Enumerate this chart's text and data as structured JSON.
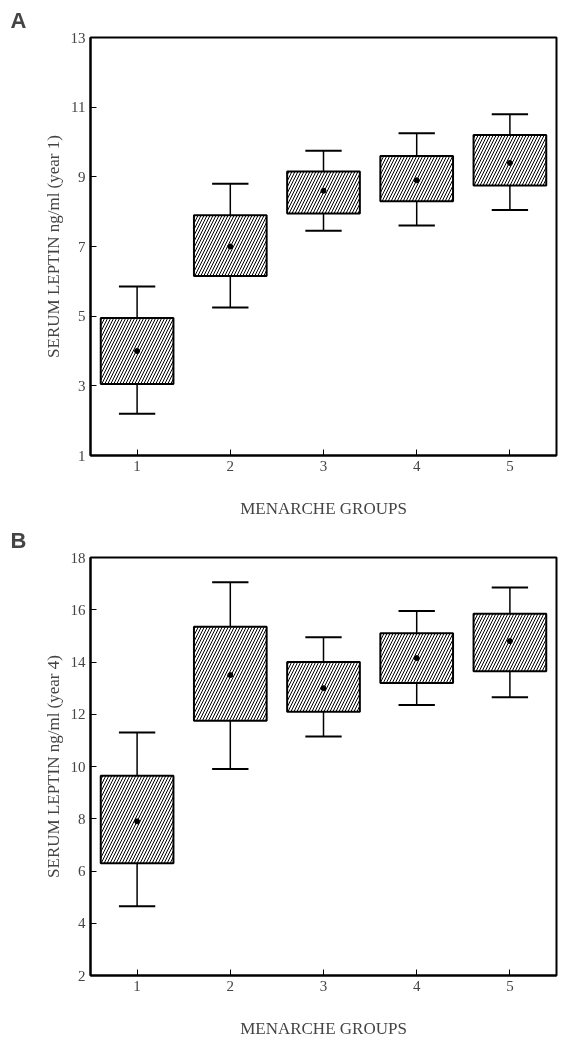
{
  "chart_data": [
    {
      "type": "box",
      "title": "A",
      "xlabel": "MENARCHE GROUPS",
      "ylabel": "SERUM LEPTIN ng/ml (year 1)",
      "categories": [
        "1",
        "2",
        "3",
        "4",
        "5"
      ],
      "ylim": [
        1,
        13
      ],
      "yticks": [
        1,
        3,
        5,
        7,
        9,
        11,
        13
      ],
      "grid": false,
      "color": "#ffffff",
      "boxes": [
        {
          "low": 2.2,
          "q1": 3.05,
          "median": 4.0,
          "q3": 4.95,
          "high": 5.85
        },
        {
          "low": 5.25,
          "q1": 6.15,
          "median": 7.0,
          "q3": 7.9,
          "high": 8.8
        },
        {
          "low": 7.45,
          "q1": 7.95,
          "median": 8.6,
          "q3": 9.15,
          "high": 9.75
        },
        {
          "low": 7.6,
          "q1": 8.3,
          "median": 8.9,
          "q3": 9.6,
          "high": 10.25
        },
        {
          "low": 8.05,
          "q1": 8.75,
          "median": 9.4,
          "q3": 10.2,
          "high": 10.8
        }
      ]
    },
    {
      "type": "box",
      "title": "B",
      "xlabel": "MENARCHE GROUPS",
      "ylabel": "SERUM LEPTIN ng/ml (year 4)",
      "categories": [
        "1",
        "2",
        "3",
        "4",
        "5"
      ],
      "ylim": [
        2,
        18
      ],
      "yticks": [
        2,
        4,
        6,
        8,
        10,
        12,
        14,
        16,
        18
      ],
      "grid": false,
      "color": "#ffffff",
      "boxes": [
        {
          "low": 4.65,
          "q1": 6.3,
          "median": 7.9,
          "q3": 9.65,
          "high": 11.3
        },
        {
          "low": 9.9,
          "q1": 11.75,
          "median": 13.5,
          "q3": 15.35,
          "high": 17.05
        },
        {
          "low": 11.15,
          "q1": 12.1,
          "median": 13.0,
          "q3": 14.0,
          "high": 14.95
        },
        {
          "low": 12.35,
          "q1": 13.2,
          "median": 14.15,
          "q3": 15.1,
          "high": 15.95
        },
        {
          "low": 12.65,
          "q1": 13.65,
          "median": 14.8,
          "q3": 15.85,
          "high": 16.85
        }
      ]
    }
  ]
}
